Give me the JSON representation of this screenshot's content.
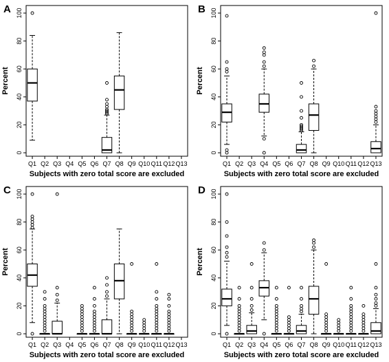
{
  "chart_data": [
    {
      "type": "boxplot",
      "panel_label": "A",
      "xlabel": "Subjects with zero total score are excluded",
      "ylabel": "Percent",
      "ylim": [
        0,
        100
      ],
      "yticks": [
        0,
        20,
        40,
        60,
        80,
        100
      ],
      "categories": [
        "Q1",
        "Q2",
        "Q3",
        "Q4",
        "Q5",
        "Q6",
        "Q7",
        "Q8",
        "Q9",
        "Q10",
        "Q11",
        "Q12",
        "Q13"
      ],
      "boxes": [
        {
          "category": "Q1",
          "whisker_low": 9,
          "q1": 37,
          "median": 50,
          "q3": 60,
          "whisker_high": 84,
          "outliers": [
            100
          ]
        },
        {
          "category": "Q7",
          "whisker_low": 0,
          "q1": 0,
          "median": 2,
          "q3": 11,
          "whisker_high": 27,
          "outliers": [
            28,
            29,
            30,
            31,
            33,
            35,
            38,
            50
          ]
        },
        {
          "category": "Q8",
          "whisker_low": 0,
          "q1": 31,
          "median": 45,
          "q3": 55,
          "whisker_high": 86,
          "outliers": []
        }
      ]
    },
    {
      "type": "boxplot",
      "panel_label": "B",
      "xlabel": "Subjects with zero total score are excluded",
      "ylabel": "Percent",
      "ylim": [
        0,
        100
      ],
      "yticks": [
        0,
        20,
        40,
        60,
        80,
        100
      ],
      "categories": [
        "Q1",
        "Q2",
        "Q3",
        "Q4",
        "Q5",
        "Q6",
        "Q7",
        "Q8",
        "Q9",
        "Q10",
        "Q11",
        "Q12",
        "Q13"
      ],
      "boxes": [
        {
          "category": "Q1",
          "whisker_low": 6,
          "q1": 22,
          "median": 29,
          "q3": 35,
          "whisker_high": 55,
          "outliers": [
            0,
            2,
            58,
            60,
            65,
            98
          ]
        },
        {
          "category": "Q4",
          "whisker_low": 12,
          "q1": 29,
          "median": 35,
          "q3": 42,
          "whisker_high": 60,
          "outliers": [
            0,
            10,
            62,
            65,
            70,
            72,
            75
          ]
        },
        {
          "category": "Q7",
          "whisker_low": 0,
          "q1": 0,
          "median": 2,
          "q3": 6,
          "whisker_high": 15,
          "outliers": [
            16,
            17,
            18,
            19,
            20,
            25,
            30,
            40,
            50
          ]
        },
        {
          "category": "Q8",
          "whisker_low": 0,
          "q1": 16,
          "median": 27,
          "q3": 35,
          "whisker_high": 60,
          "outliers": [
            62,
            66
          ]
        },
        {
          "category": "Q13",
          "whisker_low": 0,
          "q1": 0,
          "median": 3,
          "q3": 8,
          "whisker_high": 20,
          "outliers": [
            22,
            24,
            26,
            28,
            30,
            33,
            100
          ]
        }
      ]
    },
    {
      "type": "boxplot",
      "panel_label": "C",
      "xlabel": "Subjects with zero total score are excluded",
      "ylabel": "Percent",
      "ylim": [
        0,
        100
      ],
      "yticks": [
        0,
        20,
        40,
        60,
        80,
        100
      ],
      "categories": [
        "Q1",
        "Q2",
        "Q3",
        "Q4",
        "Q5",
        "Q6",
        "Q7",
        "Q8",
        "Q9",
        "Q10",
        "Q11",
        "Q12",
        "Q13"
      ],
      "boxes": [
        {
          "category": "Q1",
          "whisker_low": 8,
          "q1": 34,
          "median": 42,
          "q3": 50,
          "whisker_high": 75,
          "outliers": [
            0,
            76,
            78,
            80,
            82,
            84,
            100
          ]
        },
        {
          "category": "Q2",
          "whisker_low": 0,
          "q1": 0,
          "median": 0,
          "q3": 0,
          "whisker_high": 0,
          "outliers": [
            2,
            4,
            6,
            8,
            10,
            12,
            14,
            16,
            18,
            20,
            25,
            30
          ]
        },
        {
          "category": "Q3",
          "whisker_low": 0,
          "q1": 0,
          "median": 0,
          "q3": 9,
          "whisker_high": 22,
          "outliers": [
            24,
            28,
            33,
            100
          ]
        },
        {
          "category": "Q5",
          "whisker_low": 0,
          "q1": 0,
          "median": 0,
          "q3": 0,
          "whisker_high": 0,
          "outliers": [
            2,
            4,
            6,
            8,
            10,
            12,
            14,
            16,
            18,
            20
          ]
        },
        {
          "category": "Q6",
          "whisker_low": 0,
          "q1": 0,
          "median": 0,
          "q3": 0,
          "whisker_high": 0,
          "outliers": [
            2,
            4,
            6,
            8,
            10,
            12,
            14,
            16,
            20,
            25,
            33
          ]
        },
        {
          "category": "Q7",
          "whisker_low": 0,
          "q1": 0,
          "median": 0,
          "q3": 10,
          "whisker_high": 25,
          "outliers": [
            27,
            30,
            35,
            40
          ]
        },
        {
          "category": "Q8",
          "whisker_low": 0,
          "q1": 25,
          "median": 38,
          "q3": 50,
          "whisker_high": 75,
          "outliers": []
        },
        {
          "category": "Q9",
          "whisker_low": 0,
          "q1": 0,
          "median": 0,
          "q3": 0,
          "whisker_high": 0,
          "outliers": [
            2,
            4,
            6,
            8,
            10,
            12,
            14,
            16,
            50
          ]
        },
        {
          "category": "Q10",
          "whisker_low": 0,
          "q1": 0,
          "median": 0,
          "q3": 0,
          "whisker_high": 0,
          "outliers": [
            2,
            4,
            6,
            8,
            10
          ]
        },
        {
          "category": "Q11",
          "whisker_low": 0,
          "q1": 0,
          "median": 0,
          "q3": 0,
          "whisker_high": 0,
          "outliers": [
            2,
            4,
            6,
            8,
            10,
            12,
            14,
            16,
            18,
            20,
            25,
            30,
            50
          ]
        },
        {
          "category": "Q12",
          "whisker_low": 0,
          "q1": 0,
          "median": 0,
          "q3": 0,
          "whisker_high": 0,
          "outliers": [
            2,
            4,
            6,
            8,
            10,
            12,
            14,
            16,
            20,
            25,
            28
          ]
        }
      ]
    },
    {
      "type": "boxplot",
      "panel_label": "D",
      "xlabel": "Subjects with zero total score are excluded",
      "ylabel": "Percent",
      "ylim": [
        0,
        100
      ],
      "yticks": [
        0,
        20,
        40,
        60,
        80,
        100
      ],
      "categories": [
        "Q1",
        "Q2",
        "Q3",
        "Q4",
        "Q5",
        "Q6",
        "Q7",
        "Q8",
        "Q9",
        "Q10",
        "Q11",
        "Q12",
        "Q13"
      ],
      "boxes": [
        {
          "category": "Q1",
          "whisker_low": 6,
          "q1": 20,
          "median": 25,
          "q3": 32,
          "whisker_high": 52,
          "outliers": [
            0,
            55,
            58,
            62,
            70,
            80,
            100
          ]
        },
        {
          "category": "Q2",
          "whisker_low": 0,
          "q1": 0,
          "median": 0,
          "q3": 0,
          "whisker_high": 0,
          "outliers": [
            2,
            4,
            6,
            8,
            10,
            12,
            14,
            16,
            18,
            20,
            25,
            33
          ]
        },
        {
          "category": "Q3",
          "whisker_low": 0,
          "q1": 0,
          "median": 2,
          "q3": 6,
          "whisker_high": 15,
          "outliers": [
            17,
            20,
            25,
            33,
            50
          ]
        },
        {
          "category": "Q4",
          "whisker_low": 10,
          "q1": 27,
          "median": 33,
          "q3": 38,
          "whisker_high": 58,
          "outliers": [
            0,
            60,
            65
          ]
        },
        {
          "category": "Q5",
          "whisker_low": 0,
          "q1": 0,
          "median": 0,
          "q3": 0,
          "whisker_high": 0,
          "outliers": [
            2,
            4,
            6,
            8,
            10,
            12,
            14,
            16,
            18,
            20,
            25,
            33
          ]
        },
        {
          "category": "Q6",
          "whisker_low": 0,
          "q1": 0,
          "median": 0,
          "q3": 0,
          "whisker_high": 0,
          "outliers": [
            2,
            4,
            6,
            8,
            10,
            12,
            33
          ]
        },
        {
          "category": "Q7",
          "whisker_low": 0,
          "q1": 0,
          "median": 2,
          "q3": 6,
          "whisker_high": 14,
          "outliers": [
            16,
            18,
            20,
            25,
            33
          ]
        },
        {
          "category": "Q8",
          "whisker_low": 0,
          "q1": 14,
          "median": 25,
          "q3": 34,
          "whisker_high": 60,
          "outliers": [
            62,
            65,
            67
          ]
        },
        {
          "category": "Q9",
          "whisker_low": 0,
          "q1": 0,
          "median": 0,
          "q3": 0,
          "whisker_high": 0,
          "outliers": [
            2,
            4,
            6,
            8,
            10,
            12,
            14,
            50
          ]
        },
        {
          "category": "Q10",
          "whisker_low": 0,
          "q1": 0,
          "median": 0,
          "q3": 0,
          "whisker_high": 0,
          "outliers": [
            2,
            4,
            6,
            8,
            10
          ]
        },
        {
          "category": "Q11",
          "whisker_low": 0,
          "q1": 0,
          "median": 0,
          "q3": 0,
          "whisker_high": 0,
          "outliers": [
            2,
            4,
            6,
            8,
            10,
            12,
            14,
            16,
            18,
            20,
            25,
            33
          ]
        },
        {
          "category": "Q12",
          "whisker_low": 0,
          "q1": 0,
          "median": 0,
          "q3": 0,
          "whisker_high": 0,
          "outliers": [
            2,
            4,
            6,
            8,
            10,
            12,
            14,
            20
          ]
        },
        {
          "category": "Q13",
          "whisker_low": 0,
          "q1": 0,
          "median": 2,
          "q3": 8,
          "whisker_high": 18,
          "outliers": [
            20,
            22,
            25,
            28,
            33,
            50
          ]
        }
      ]
    }
  ]
}
